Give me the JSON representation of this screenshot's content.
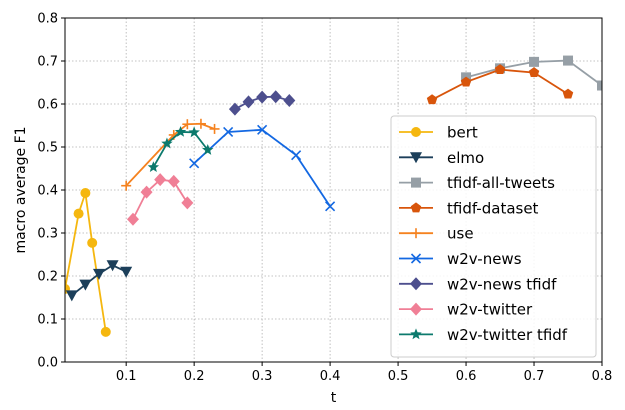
{
  "chart_data": {
    "type": "line",
    "xlabel": "t",
    "ylabel": "macro average F1",
    "xlim": [
      0.01,
      0.8
    ],
    "ylim": [
      0.0,
      0.8
    ],
    "xticks": [
      "0.1",
      "0.2",
      "0.3",
      "0.4",
      "0.5",
      "0.6",
      "0.7",
      "0.8"
    ],
    "yticks": [
      "0.0",
      "0.1",
      "0.2",
      "0.3",
      "0.4",
      "0.5",
      "0.6",
      "0.7",
      "0.8"
    ],
    "grid": true,
    "legend_position": "lower-right",
    "series": [
      {
        "name": "bert",
        "color": "#f5b70f",
        "marker": "circle",
        "x": [
          0.01,
          0.03,
          0.04,
          0.05,
          0.07
        ],
        "y": [
          0.17,
          0.345,
          0.393,
          0.277,
          0.07
        ]
      },
      {
        "name": "elmo",
        "color": "#1c3f5a",
        "marker": "triangle-down",
        "x": [
          0.02,
          0.04,
          0.06,
          0.08,
          0.1
        ],
        "y": [
          0.155,
          0.18,
          0.205,
          0.225,
          0.21
        ]
      },
      {
        "name": "tfidf-all-tweets",
        "color": "#969fa6",
        "marker": "square",
        "x": [
          0.6,
          0.65,
          0.7,
          0.75,
          0.8
        ],
        "y": [
          0.662,
          0.683,
          0.698,
          0.701,
          0.643
        ]
      },
      {
        "name": "tfidf-dataset",
        "color": "#d8550b",
        "marker": "pentagon",
        "x": [
          0.55,
          0.6,
          0.65,
          0.7,
          0.75
        ],
        "y": [
          0.61,
          0.651,
          0.68,
          0.673,
          0.623
        ]
      },
      {
        "name": "use",
        "color": "#f5821f",
        "marker": "plus",
        "x": [
          0.1,
          0.17,
          0.19,
          0.21,
          0.23
        ],
        "y": [
          0.41,
          0.528,
          0.553,
          0.554,
          0.542
        ]
      },
      {
        "name": "w2v-news",
        "color": "#1368e2",
        "marker": "x",
        "x": [
          0.2,
          0.25,
          0.3,
          0.35,
          0.4
        ],
        "y": [
          0.462,
          0.535,
          0.54,
          0.481,
          0.362
        ]
      },
      {
        "name": "w2v-news tfidf",
        "color": "#4d4f8e",
        "marker": "diamond",
        "x": [
          0.26,
          0.28,
          0.3,
          0.32,
          0.34
        ],
        "y": [
          0.588,
          0.605,
          0.616,
          0.617,
          0.608
        ]
      },
      {
        "name": "w2v-twitter",
        "color": "#f07f96",
        "marker": "diamond",
        "x": [
          0.11,
          0.13,
          0.15,
          0.17,
          0.19
        ],
        "y": [
          0.332,
          0.395,
          0.424,
          0.42,
          0.37
        ]
      },
      {
        "name": "w2v-twitter tfidf",
        "color": "#0c7a6d",
        "marker": "star",
        "x": [
          0.14,
          0.16,
          0.18,
          0.2,
          0.22
        ],
        "y": [
          0.453,
          0.508,
          0.535,
          0.534,
          0.493
        ]
      }
    ]
  }
}
